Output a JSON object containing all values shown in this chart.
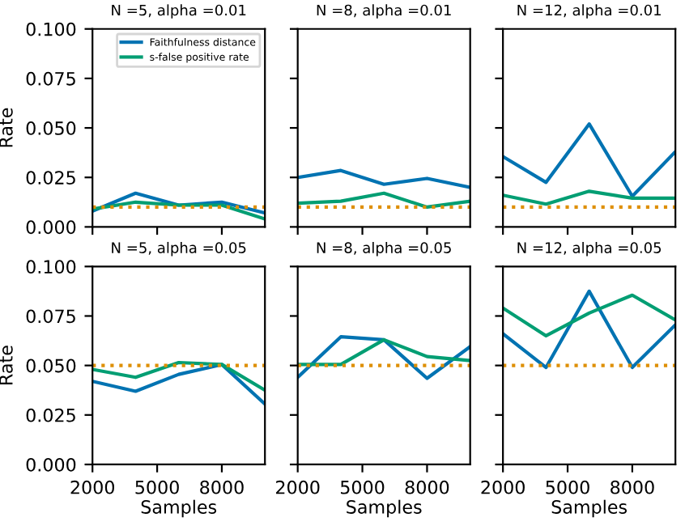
{
  "chart_data": [
    {
      "type": "line",
      "title": "N =5, alpha =0.01",
      "ylabel": "Rate",
      "x": [
        2000,
        4000,
        6000,
        8000,
        10000
      ],
      "xlim": [
        2000,
        10000
      ],
      "xticks": [
        2000,
        5000,
        8000
      ],
      "ylim": [
        0,
        0.1
      ],
      "yticks": [
        {
          "value": 0,
          "label": "0.000"
        },
        {
          "value": 0.025,
          "label": "0.025"
        },
        {
          "value": 0.05,
          "label": "0.050"
        },
        {
          "value": 0.075,
          "label": "0.075"
        },
        {
          "value": 0.1,
          "label": "0.100"
        }
      ],
      "tick_labels": "y",
      "legend": "top right",
      "grid": false,
      "series": [
        {
          "name": "Faithfulness distance",
          "color": "#0173b2",
          "values": [
            0.008,
            0.017,
            0.011,
            0.0125,
            0.007
          ]
        },
        {
          "name": "s-false positive rate",
          "color": "#029e73",
          "values": [
            0.009,
            0.0125,
            0.011,
            0.011,
            0.004
          ]
        }
      ],
      "ref_lines": [
        {
          "axis": "y",
          "value": 0.01,
          "color": "#de8f05",
          "line_style": "dotted"
        }
      ]
    },
    {
      "type": "line",
      "title": "N =8, alpha =0.01",
      "x": [
        2000,
        4000,
        6000,
        8000,
        10000
      ],
      "xlim": [
        2000,
        10000
      ],
      "xticks": [
        2000,
        5000,
        8000
      ],
      "ylim": [
        0,
        0.1
      ],
      "yticks": [
        0,
        0.025,
        0.05,
        0.075,
        0.1
      ],
      "tick_labels": false,
      "grid": false,
      "series": [
        {
          "color": "#0173b2",
          "values": [
            0.025,
            0.0285,
            0.0215,
            0.0245,
            0.02
          ]
        },
        {
          "color": "#029e73",
          "values": [
            0.012,
            0.013,
            0.017,
            0.01,
            0.013
          ]
        }
      ],
      "ref_lines": [
        {
          "axis": "y",
          "value": 0.01,
          "color": "#de8f05",
          "line_style": "dotted"
        }
      ]
    },
    {
      "type": "line",
      "title": "N =12, alpha =0.01",
      "x": [
        2000,
        4000,
        6000,
        8000,
        10000
      ],
      "xlim": [
        2000,
        10000
      ],
      "xticks": [
        2000,
        5000,
        8000
      ],
      "ylim": [
        0,
        0.1
      ],
      "yticks": [
        0,
        0.025,
        0.05,
        0.075,
        0.1
      ],
      "tick_labels": false,
      "grid": false,
      "series": [
        {
          "color": "#0173b2",
          "values": [
            0.0355,
            0.0225,
            0.052,
            0.0155,
            0.038
          ]
        },
        {
          "color": "#029e73",
          "values": [
            0.016,
            0.0115,
            0.018,
            0.0145,
            0.0145
          ]
        }
      ],
      "ref_lines": [
        {
          "axis": "y",
          "value": 0.01,
          "color": "#de8f05",
          "line_style": "dotted"
        }
      ]
    },
    {
      "type": "line",
      "title": "N =5, alpha =0.05",
      "xlabel": "Samples",
      "ylabel": "Rate",
      "x": [
        2000,
        4000,
        6000,
        8000,
        10000
      ],
      "xlim": [
        2000,
        10000
      ],
      "xticks": [
        2000,
        5000,
        8000
      ],
      "ylim": [
        0,
        0.1
      ],
      "yticks": [
        {
          "value": 0,
          "label": "0.000"
        },
        {
          "value": 0.025,
          "label": "0.025"
        },
        {
          "value": 0.05,
          "label": "0.050"
        },
        {
          "value": 0.075,
          "label": "0.075"
        },
        {
          "value": 0.1,
          "label": "0.100"
        }
      ],
      "grid": false,
      "series": [
        {
          "color": "#0173b2",
          "values": [
            0.042,
            0.037,
            0.0455,
            0.0505,
            0.0305
          ]
        },
        {
          "color": "#029e73",
          "values": [
            0.048,
            0.044,
            0.0515,
            0.0505,
            0.0375
          ]
        }
      ],
      "ref_lines": [
        {
          "axis": "y",
          "value": 0.05,
          "color": "#de8f05",
          "line_style": "dotted"
        }
      ]
    },
    {
      "type": "line",
      "title": "N =8, alpha =0.05",
      "xlabel": "Samples",
      "x": [
        2000,
        4000,
        6000,
        8000,
        10000
      ],
      "xlim": [
        2000,
        10000
      ],
      "xticks": [
        2000,
        5000,
        8000
      ],
      "ylim": [
        0,
        0.1
      ],
      "yticks": [
        0,
        0.025,
        0.05,
        0.075,
        0.1
      ],
      "tick_labels": "x",
      "grid": false,
      "series": [
        {
          "color": "#0173b2",
          "values": [
            0.044,
            0.0645,
            0.063,
            0.0435,
            0.0595
          ]
        },
        {
          "color": "#029e73",
          "values": [
            0.0505,
            0.0505,
            0.063,
            0.0545,
            0.0525
          ]
        }
      ],
      "ref_lines": [
        {
          "axis": "y",
          "value": 0.05,
          "color": "#de8f05",
          "line_style": "dotted"
        }
      ]
    },
    {
      "type": "line",
      "title": "N =12, alpha =0.05",
      "xlabel": "Samples",
      "x": [
        2000,
        4000,
        6000,
        8000,
        10000
      ],
      "xlim": [
        2000,
        10000
      ],
      "xticks": [
        2000,
        5000,
        8000
      ],
      "ylim": [
        0,
        0.1
      ],
      "yticks": [
        0,
        0.025,
        0.05,
        0.075,
        0.1
      ],
      "tick_labels": "x",
      "grid": false,
      "series": [
        {
          "color": "#0173b2",
          "values": [
            0.066,
            0.049,
            0.0875,
            0.049,
            0.0705
          ]
        },
        {
          "color": "#029e73",
          "values": [
            0.079,
            0.065,
            0.0765,
            0.0855,
            0.073
          ]
        }
      ],
      "ref_lines": [
        {
          "axis": "y",
          "value": 0.05,
          "color": "#de8f05",
          "line_style": "dotted"
        }
      ]
    }
  ]
}
